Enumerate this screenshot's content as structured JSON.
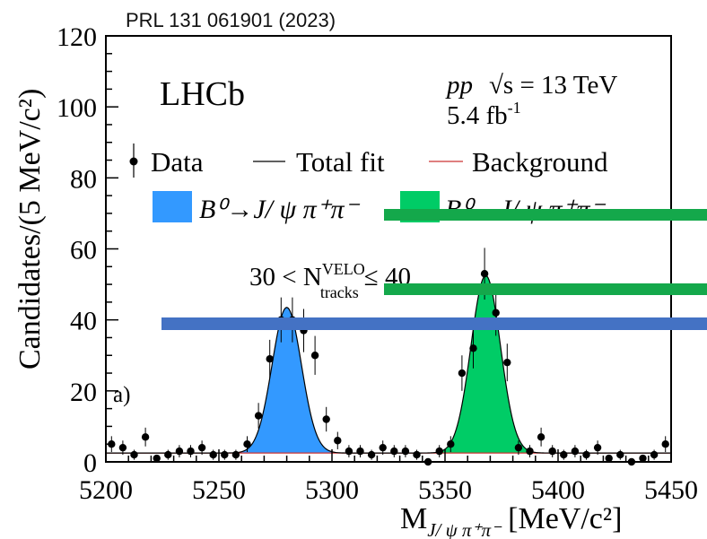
{
  "header": {
    "citation": "PRL 131 061901 (2023)"
  },
  "chart_data": {
    "type": "scatter",
    "experiment": "LHCb",
    "panel_label": "a)",
    "energy_label": {
      "beam": "pp",
      "sqrt_s": "√s = 13 TeV",
      "lumi": "5.4 fb",
      "lumi_exp": "-1"
    },
    "selection": {
      "prefix": "30 < N",
      "sup": "VELO",
      "sub": "tracks",
      "suffix": "≤ 40"
    },
    "xlabel": {
      "main": "M",
      "sub": "J/ ψ π⁺π⁻",
      "unit": "[MeV/c²]"
    },
    "ylabel": "Candidates/(5 MeV/c²)",
    "xlim": [
      5200,
      5450
    ],
    "ylim": [
      0,
      120
    ],
    "xticks": [
      5200,
      5250,
      5300,
      5350,
      5400,
      5450
    ],
    "yticks": [
      0,
      20,
      40,
      60,
      80,
      100,
      120
    ],
    "legend": {
      "data": "Data",
      "total_fit": "Total fit",
      "background": "Background",
      "sig1": "B⁰→J/ ψ π⁺π⁻",
      "sig2": "B⁰→J/ ψ π⁺π⁻"
    },
    "colors": {
      "sig1": "#3399ff",
      "sig2": "#00cc66",
      "background": "#cc3333",
      "total_fit": "#000000",
      "redact_blue": "#4472c4",
      "redact_green": "#14a84b"
    },
    "data_points": [
      {
        "x": 5202.5,
        "y": 5
      },
      {
        "x": 5207.5,
        "y": 4
      },
      {
        "x": 5212.5,
        "y": 2
      },
      {
        "x": 5217.5,
        "y": 7
      },
      {
        "x": 5222.5,
        "y": 1
      },
      {
        "x": 5227.5,
        "y": 2
      },
      {
        "x": 5232.5,
        "y": 3
      },
      {
        "x": 5237.5,
        "y": 3
      },
      {
        "x": 5242.5,
        "y": 4
      },
      {
        "x": 5247.5,
        "y": 2
      },
      {
        "x": 5252.5,
        "y": 2
      },
      {
        "x": 5257.5,
        "y": 2
      },
      {
        "x": 5262.5,
        "y": 5
      },
      {
        "x": 5267.5,
        "y": 13
      },
      {
        "x": 5272.5,
        "y": 29
      },
      {
        "x": 5277.5,
        "y": 40
      },
      {
        "x": 5282.5,
        "y": 40
      },
      {
        "x": 5287.5,
        "y": 37
      },
      {
        "x": 5292.5,
        "y": 30
      },
      {
        "x": 5297.5,
        "y": 12
      },
      {
        "x": 5302.5,
        "y": 6
      },
      {
        "x": 5307.5,
        "y": 3
      },
      {
        "x": 5312.5,
        "y": 3
      },
      {
        "x": 5317.5,
        "y": 2
      },
      {
        "x": 5322.5,
        "y": 4
      },
      {
        "x": 5327.5,
        "y": 3
      },
      {
        "x": 5332.5,
        "y": 3
      },
      {
        "x": 5337.5,
        "y": 2
      },
      {
        "x": 5342.5,
        "y": 0
      },
      {
        "x": 5347.5,
        "y": 3
      },
      {
        "x": 5352.5,
        "y": 5
      },
      {
        "x": 5357.5,
        "y": 25
      },
      {
        "x": 5362.5,
        "y": 32
      },
      {
        "x": 5367.5,
        "y": 53
      },
      {
        "x": 5372.5,
        "y": 42
      },
      {
        "x": 5377.5,
        "y": 28
      },
      {
        "x": 5382.5,
        "y": 4
      },
      {
        "x": 5387.5,
        "y": 3
      },
      {
        "x": 5392.5,
        "y": 7
      },
      {
        "x": 5397.5,
        "y": 3
      },
      {
        "x": 5402.5,
        "y": 2
      },
      {
        "x": 5407.5,
        "y": 3
      },
      {
        "x": 5412.5,
        "y": 2
      },
      {
        "x": 5417.5,
        "y": 4
      },
      {
        "x": 5422.5,
        "y": 1
      },
      {
        "x": 5427.5,
        "y": 2
      },
      {
        "x": 5432.5,
        "y": 0
      },
      {
        "x": 5437.5,
        "y": 1
      },
      {
        "x": 5442.5,
        "y": 2
      },
      {
        "x": 5447.5,
        "y": 5
      }
    ],
    "signal_peaks": [
      {
        "name": "sig1",
        "mean": 5280,
        "sigma": 6.5,
        "amplitude": 41
      },
      {
        "name": "sig2",
        "mean": 5368,
        "sigma": 6.5,
        "amplitude": 50
      }
    ],
    "background_level": 2.5
  }
}
